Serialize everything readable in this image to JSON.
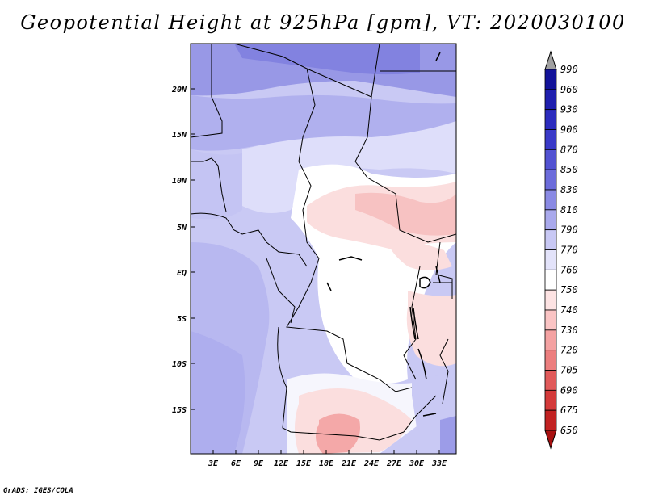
{
  "title": "Geopotential Height at 925hPa [gpm], VT: 2020030100",
  "credit": "GrADS: IGES/COLA",
  "map": {
    "y_ticks": [
      "20N",
      "15N",
      "10N",
      "5N",
      "EQ",
      "5S",
      "10S",
      "15S"
    ],
    "x_ticks": [
      "3E",
      "6E",
      "9E",
      "12E",
      "15E",
      "18E",
      "21E",
      "24E",
      "27E",
      "30E",
      "33E"
    ]
  },
  "colorbar": {
    "labels": [
      "990",
      "960",
      "930",
      "900",
      "870",
      "850",
      "830",
      "810",
      "790",
      "770",
      "760",
      "750",
      "740",
      "730",
      "720",
      "705",
      "690",
      "675",
      "650"
    ],
    "colors": [
      "#13139a",
      "#1f1fae",
      "#2c2cbe",
      "#3a3ac8",
      "#5252d2",
      "#6c6cdb",
      "#8a8ae4",
      "#a9a9ec",
      "#c8c8f4",
      "#e3e3fa",
      "#ffffff",
      "#fde3e3",
      "#fac4c4",
      "#f4a2a2",
      "#ec7e7e",
      "#e15a5a",
      "#d43a3a",
      "#c22222",
      "#a81010"
    ]
  }
}
